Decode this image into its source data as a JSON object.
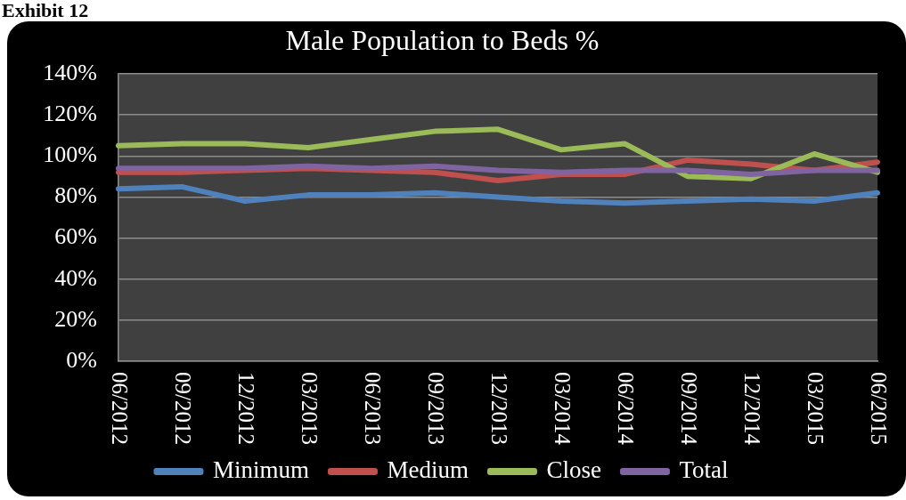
{
  "chart_data": {
    "type": "line",
    "title": "Male Population to Beds %",
    "annotations": [
      "Exhibit 12"
    ],
    "categories": [
      "06/2012",
      "09/2012",
      "12/2012",
      "03/2013",
      "06/2013",
      "09/2013",
      "12/2013",
      "03/2014",
      "06/2014",
      "09/2014",
      "12/2014",
      "03/2015",
      "06/2015"
    ],
    "series": [
      {
        "name": "Minimum",
        "color": "#4f81bd",
        "values": [
          84,
          85,
          78,
          81,
          81,
          82,
          80,
          78,
          77,
          78,
          79,
          78,
          82
        ]
      },
      {
        "name": "Medium",
        "color": "#c0504d",
        "values": [
          92,
          92,
          93,
          94,
          93,
          92,
          88,
          91,
          91,
          98,
          96,
          93,
          97
        ]
      },
      {
        "name": "Close",
        "color": "#9bbb59",
        "values": [
          105,
          106,
          106,
          104,
          108,
          112,
          113,
          103,
          106,
          90,
          89,
          101,
          92
        ]
      },
      {
        "name": "Total",
        "color": "#8064a2",
        "values": [
          94,
          94,
          94,
          95,
          94,
          95,
          93,
          92,
          93,
          93,
          91,
          93,
          93
        ]
      }
    ],
    "ylim": [
      0,
      140
    ],
    "yticks": [
      {
        "value": 0,
        "label": "0%"
      },
      {
        "value": 20,
        "label": "20%"
      },
      {
        "value": 40,
        "label": "40%"
      },
      {
        "value": 60,
        "label": "60%"
      },
      {
        "value": 80,
        "label": "80%"
      },
      {
        "value": 100,
        "label": "100%"
      },
      {
        "value": 120,
        "label": "120%"
      },
      {
        "value": 140,
        "label": "140%"
      }
    ],
    "grid": "y",
    "legend": "bottom"
  }
}
